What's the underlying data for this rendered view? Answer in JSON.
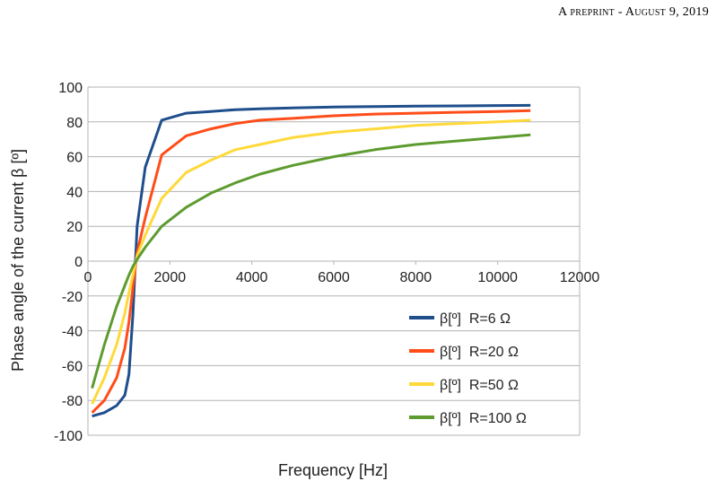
{
  "page_header": "A preprint - August 9, 2019",
  "chart_data": {
    "type": "line",
    "title": "",
    "xlabel": "Frequency [Hz]",
    "ylabel": "Phase angle of the current β [º]",
    "xlim": [
      0,
      12000
    ],
    "ylim": [
      -100,
      100
    ],
    "x_ticks": [
      "0",
      "2000",
      "4000",
      "6000",
      "8000",
      "10000",
      "12000"
    ],
    "y_ticks": [
      "100",
      "80",
      "60",
      "40",
      "20",
      "0",
      "-20",
      "-40",
      "-60",
      "-80",
      "-100"
    ],
    "grid": "horizontal",
    "legend_position": "lower-right",
    "x": [
      100,
      400,
      700,
      900,
      1000,
      1100,
      1200,
      1400,
      1800,
      2400,
      3000,
      3600,
      4200,
      5000,
      6000,
      7000,
      8000,
      9000,
      10000,
      10800
    ],
    "series": [
      {
        "name": "β[º]  R=6 Ω",
        "color": "#1f4e8c",
        "values": [
          -89,
          -87,
          -83,
          -77,
          -65,
          -30,
          20,
          54,
          81,
          85,
          86,
          87,
          87.5,
          88,
          88.5,
          88.8,
          89,
          89.2,
          89.4,
          89.5
        ]
      },
      {
        "name": "β[º]  R=20 Ω",
        "color": "#ff4d1a",
        "values": [
          -87,
          -80,
          -67,
          -50,
          -35,
          -15,
          5,
          25,
          61,
          72,
          76,
          79,
          81,
          82,
          83.5,
          84.5,
          85,
          85.5,
          86,
          86.5
        ]
      },
      {
        "name": "β[º]  R=50 Ω",
        "color": "#ffd93a",
        "values": [
          -82,
          -67,
          -48,
          -30,
          -18,
          -8,
          3,
          15,
          36,
          51,
          58,
          64,
          67,
          71,
          74,
          76,
          78,
          79,
          80,
          81
        ]
      },
      {
        "name": "β[º]  R=100 Ω",
        "color": "#5d9b2f",
        "values": [
          -73,
          -48,
          -26,
          -14,
          -8,
          -3,
          1,
          8,
          20,
          31,
          39,
          45,
          50,
          55,
          60,
          64,
          67,
          69,
          71,
          72.5
        ]
      }
    ]
  }
}
